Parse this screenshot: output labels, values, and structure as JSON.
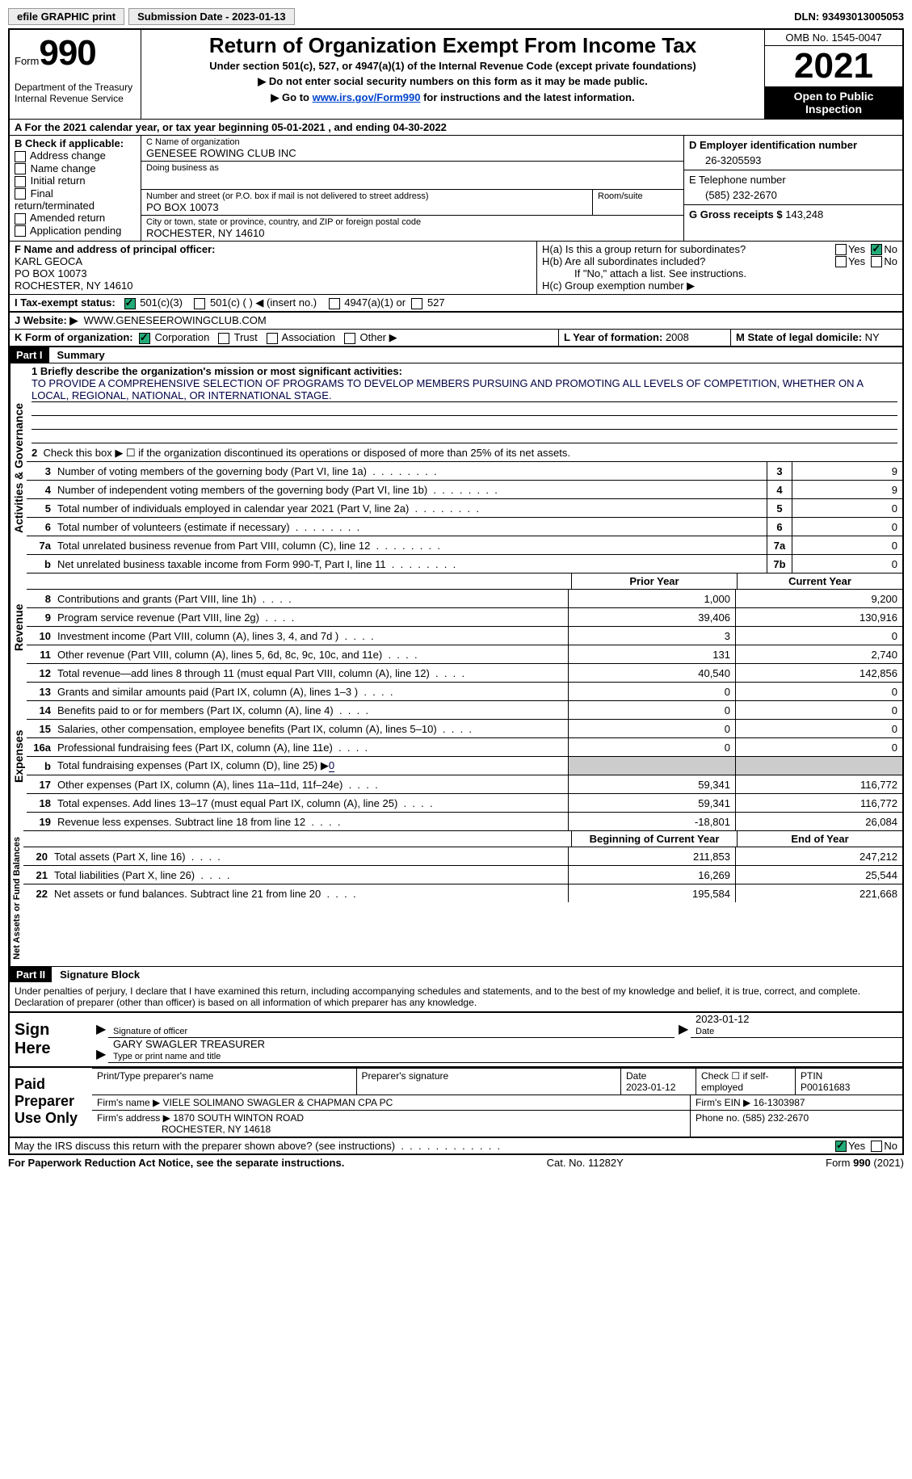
{
  "topbar": {
    "efile": "efile GRAPHIC print",
    "submission": "Submission Date - 2023-01-13",
    "dln": "DLN: 93493013005053"
  },
  "header": {
    "form_word": "Form",
    "form_num": "990",
    "dept": "Department of the Treasury Internal Revenue Service",
    "title": "Return of Organization Exempt From Income Tax",
    "subtitle": "Under section 501(c), 527, or 4947(a)(1) of the Internal Revenue Code (except private foundations)",
    "arrow1": "▶ Do not enter social security numbers on this form as it may be made public.",
    "arrow2_pre": "▶ Go to ",
    "arrow2_link": "www.irs.gov/Form990",
    "arrow2_post": " for instructions and the latest information.",
    "omb": "OMB No. 1545-0047",
    "year": "2021",
    "open": "Open to Public Inspection"
  },
  "a_line": "A For the 2021 calendar year, or tax year beginning 05-01-2021    , and ending 04-30-2022",
  "block_b": {
    "title": "B Check if applicable:",
    "opts": [
      "Address change",
      "Name change",
      "Initial return",
      "Final return/terminated",
      "Amended return",
      "Application pending"
    ]
  },
  "block_c": {
    "label_name": "C Name of organization",
    "name": "GENESEE ROWING CLUB INC",
    "dba_label": "Doing business as",
    "dba": "",
    "addr_label": "Number and street (or P.O. box if mail is not delivered to street address)",
    "room_label": "Room/suite",
    "addr": "PO BOX 10073",
    "city_label": "City or town, state or province, country, and ZIP or foreign postal code",
    "city": "ROCHESTER, NY  14610"
  },
  "block_d": {
    "label": "D Employer identification number",
    "val": "26-3205593"
  },
  "block_e": {
    "label": "E Telephone number",
    "val": "(585) 232-2670"
  },
  "block_g": {
    "label": "G Gross receipts $",
    "val": "143,248"
  },
  "block_f": {
    "label": "F  Name and address of principal officer:",
    "name": "KARL GEOCA",
    "addr1": "PO BOX 10073",
    "addr2": "ROCHESTER, NY  14610"
  },
  "block_h": {
    "a": "H(a)  Is this a group return for subordinates?",
    "b": "H(b)  Are all subordinates included?",
    "b_note": "If \"No,\" attach a list. See instructions.",
    "c": "H(c)  Group exemption number ▶"
  },
  "block_i": {
    "label": "I   Tax-exempt status:",
    "o1": "501(c)(3)",
    "o2": "501(c) (  ) ◀ (insert no.)",
    "o3": "4947(a)(1) or",
    "o4": "527"
  },
  "block_j": {
    "label": "J   Website: ▶",
    "val": "WWW.GENESEEROWINGCLUB.COM"
  },
  "block_k": {
    "label": "K Form of organization:",
    "o1": "Corporation",
    "o2": "Trust",
    "o3": "Association",
    "o4": "Other ▶"
  },
  "block_l": {
    "label": "L Year of formation:",
    "val": "2008"
  },
  "block_m": {
    "label": "M State of legal domicile:",
    "val": "NY"
  },
  "part1": {
    "tag": "Part I",
    "title": "Summary",
    "l1_label": "1  Briefly describe the organization's mission or most significant activities:",
    "l1_text": "TO PROVIDE A COMPREHENSIVE SELECTION OF PROGRAMS TO DEVELOP MEMBERS PURSUING AND PROMOTING ALL LEVELS OF COMPETITION, WHETHER ON A LOCAL, REGIONAL, NATIONAL, OR INTERNATIONAL STAGE.",
    "l2": "Check this box ▶ ☐  if the organization discontinued its operations or disposed of more than 25% of its net assets.",
    "vlabels": {
      "ag": "Activities & Governance",
      "rev": "Revenue",
      "exp": "Expenses",
      "na": "Net Assets or Fund Balances"
    },
    "lines_top": [
      {
        "n": "3",
        "d": "Number of voting members of the governing body (Part VI, line 1a)",
        "b": "3",
        "v": "9"
      },
      {
        "n": "4",
        "d": "Number of independent voting members of the governing body (Part VI, line 1b)",
        "b": "4",
        "v": "9"
      },
      {
        "n": "5",
        "d": "Total number of individuals employed in calendar year 2021 (Part V, line 2a)",
        "b": "5",
        "v": "0"
      },
      {
        "n": "6",
        "d": "Total number of volunteers (estimate if necessary)",
        "b": "6",
        "v": "0"
      },
      {
        "n": "7a",
        "d": "Total unrelated business revenue from Part VIII, column (C), line 12",
        "b": "7a",
        "v": "0"
      },
      {
        "n": "b",
        "d": "Net unrelated business taxable income from Form 990-T, Part I, line 11",
        "b": "7b",
        "v": "0"
      }
    ],
    "col_h1": "Prior Year",
    "col_h2": "Current Year",
    "rev_lines": [
      {
        "n": "8",
        "d": "Contributions and grants (Part VIII, line 1h)",
        "p": "1,000",
        "c": "9,200"
      },
      {
        "n": "9",
        "d": "Program service revenue (Part VIII, line 2g)",
        "p": "39,406",
        "c": "130,916"
      },
      {
        "n": "10",
        "d": "Investment income (Part VIII, column (A), lines 3, 4, and 7d )",
        "p": "3",
        "c": "0"
      },
      {
        "n": "11",
        "d": "Other revenue (Part VIII, column (A), lines 5, 6d, 8c, 9c, 10c, and 11e)",
        "p": "131",
        "c": "2,740"
      },
      {
        "n": "12",
        "d": "Total revenue—add lines 8 through 11 (must equal Part VIII, column (A), line 12)",
        "p": "40,540",
        "c": "142,856"
      }
    ],
    "exp_lines": [
      {
        "n": "13",
        "d": "Grants and similar amounts paid (Part IX, column (A), lines 1–3 )",
        "p": "0",
        "c": "0"
      },
      {
        "n": "14",
        "d": "Benefits paid to or for members (Part IX, column (A), line 4)",
        "p": "0",
        "c": "0"
      },
      {
        "n": "15",
        "d": "Salaries, other compensation, employee benefits (Part IX, column (A), lines 5–10)",
        "p": "0",
        "c": "0"
      },
      {
        "n": "16a",
        "d": "Professional fundraising fees (Part IX, column (A), line 11e)",
        "p": "0",
        "c": "0"
      }
    ],
    "exp_b": {
      "n": "b",
      "d": "Total fundraising expenses (Part IX, column (D), line 25) ▶",
      "v": "0"
    },
    "exp_lines2": [
      {
        "n": "17",
        "d": "Other expenses (Part IX, column (A), lines 11a–11d, 11f–24e)",
        "p": "59,341",
        "c": "116,772"
      },
      {
        "n": "18",
        "d": "Total expenses. Add lines 13–17 (must equal Part IX, column (A), line 25)",
        "p": "59,341",
        "c": "116,772"
      },
      {
        "n": "19",
        "d": "Revenue less expenses. Subtract line 18 from line 12",
        "p": "-18,801",
        "c": "26,084"
      }
    ],
    "na_h1": "Beginning of Current Year",
    "na_h2": "End of Year",
    "na_lines": [
      {
        "n": "20",
        "d": "Total assets (Part X, line 16)",
        "p": "211,853",
        "c": "247,212"
      },
      {
        "n": "21",
        "d": "Total liabilities (Part X, line 26)",
        "p": "16,269",
        "c": "25,544"
      },
      {
        "n": "22",
        "d": "Net assets or fund balances. Subtract line 21 from line 20",
        "p": "195,584",
        "c": "221,668"
      }
    ]
  },
  "part2": {
    "tag": "Part II",
    "title": "Signature Block",
    "decl": "Under penalties of perjury, I declare that I have examined this return, including accompanying schedules and statements, and to the best of my knowledge and belief, it is true, correct, and complete. Declaration of preparer (other than officer) is based on all information of which preparer has any knowledge.",
    "sign_here": "Sign Here",
    "sig_officer": "Signature of officer",
    "sig_date": "2023-01-12",
    "date_label": "Date",
    "name_title": "GARY SWAGLER  TREASURER",
    "name_label": "Type or print name and title",
    "paid": "Paid Preparer Use Only",
    "pt_name": "Print/Type preparer's name",
    "pt_sig": "Preparer's signature",
    "pt_date_l": "Date",
    "pt_date": "2023-01-12",
    "pt_check": "Check ☐ if self-employed",
    "ptin_l": "PTIN",
    "ptin": "P00161683",
    "firm_name_l": "Firm's name      ▶",
    "firm_name": "VIELE SOLIMANO SWAGLER & CHAPMAN CPA PC",
    "firm_ein_l": "Firm's EIN ▶",
    "firm_ein": "16-1303987",
    "firm_addr_l": "Firm's address ▶",
    "firm_addr1": "1870 SOUTH WINTON ROAD",
    "firm_addr2": "ROCHESTER, NY  14618",
    "phone_l": "Phone no.",
    "phone": "(585) 232-2670",
    "discuss": "May the IRS discuss this return with the preparer shown above? (see instructions)"
  },
  "footer": {
    "l": "For Paperwork Reduction Act Notice, see the separate instructions.",
    "m": "Cat. No. 11282Y",
    "r": "Form 990 (2021)"
  }
}
